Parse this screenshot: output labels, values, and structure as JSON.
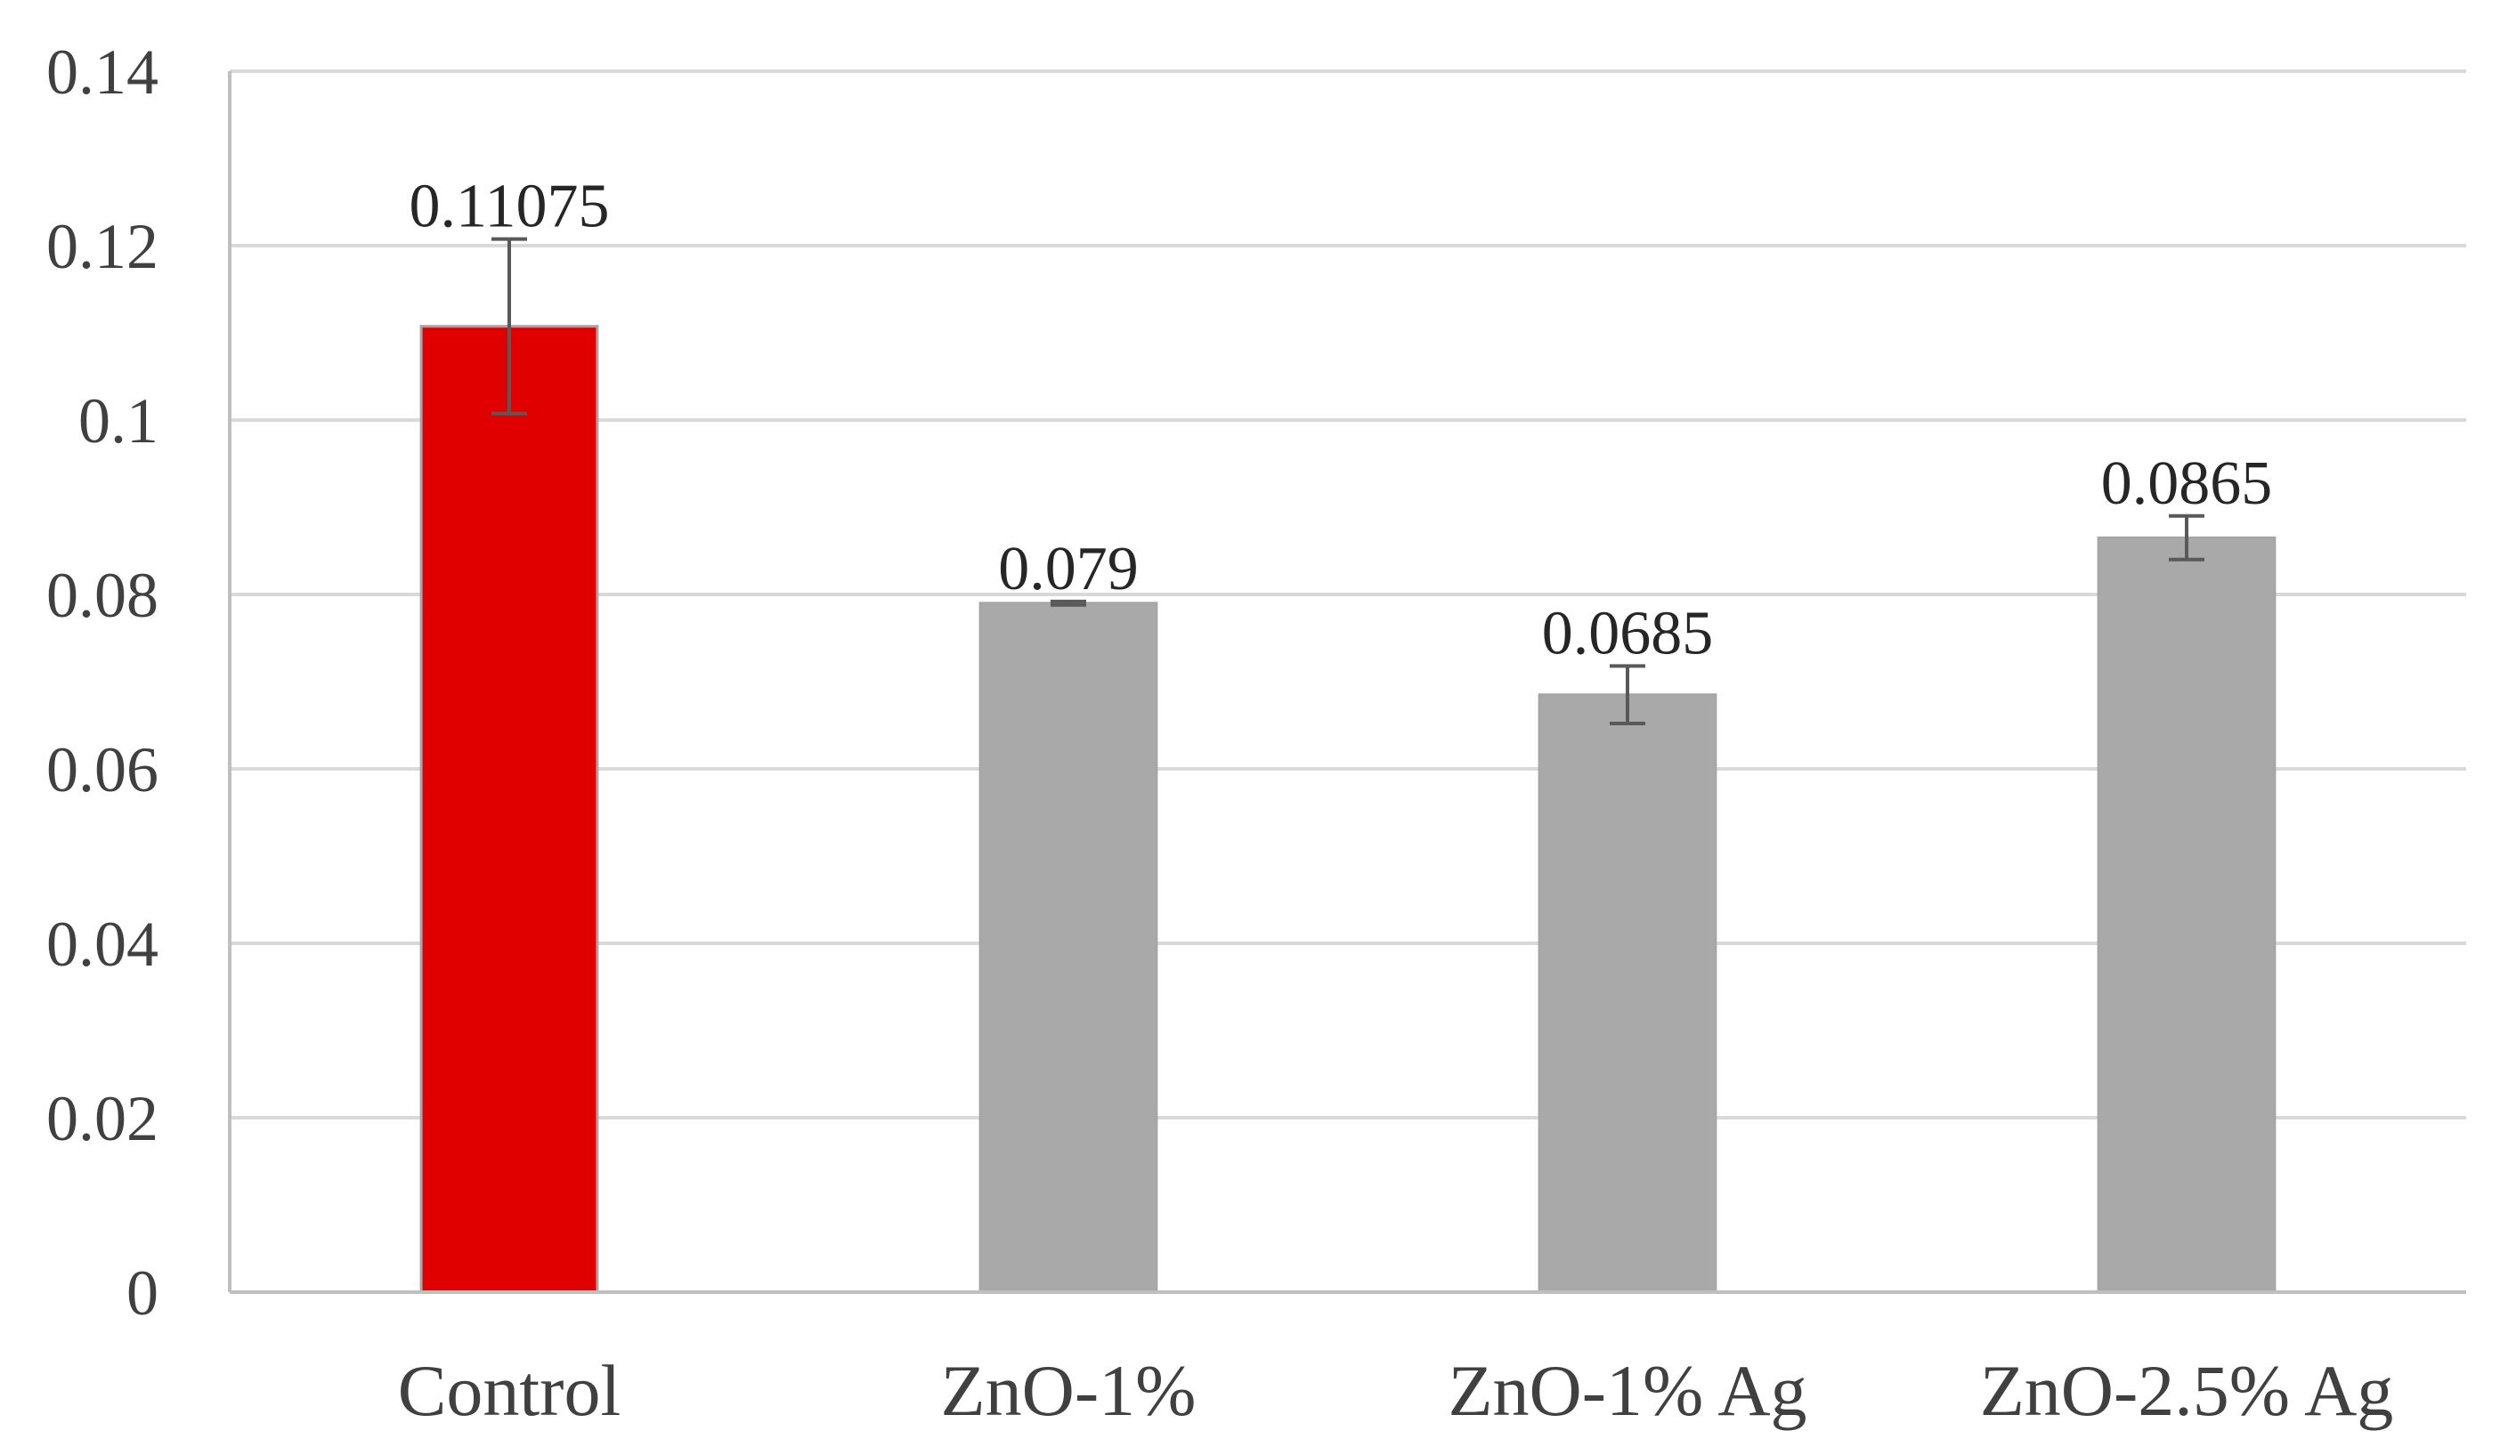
{
  "chart_data": {
    "type": "bar",
    "categories": [
      "Control",
      "ZnO-1%",
      "ZnO-1% Ag",
      "ZnO-2.5% Ag"
    ],
    "values": [
      0.11075,
      0.079,
      0.0685,
      0.0865
    ],
    "value_labels": [
      "0.11075",
      "0.079",
      "0.0685",
      "0.0865"
    ],
    "error": [
      0.01,
      0.0002,
      0.0033,
      0.0025
    ],
    "bar_colors": [
      "#e00000",
      "#a9a9a9",
      "#a9a9a9",
      "#a9a9a9"
    ],
    "ylim": [
      0,
      0.14
    ],
    "yticks": [
      0,
      0.02,
      0.04,
      0.06,
      0.08,
      0.1,
      0.12,
      0.14
    ],
    "ytick_labels": [
      "0",
      "0.02",
      "0.04",
      "0.06",
      "0.08",
      "0.1",
      "0.12",
      "0.14"
    ],
    "grid": true,
    "title": "",
    "xlabel": "",
    "ylabel": ""
  }
}
